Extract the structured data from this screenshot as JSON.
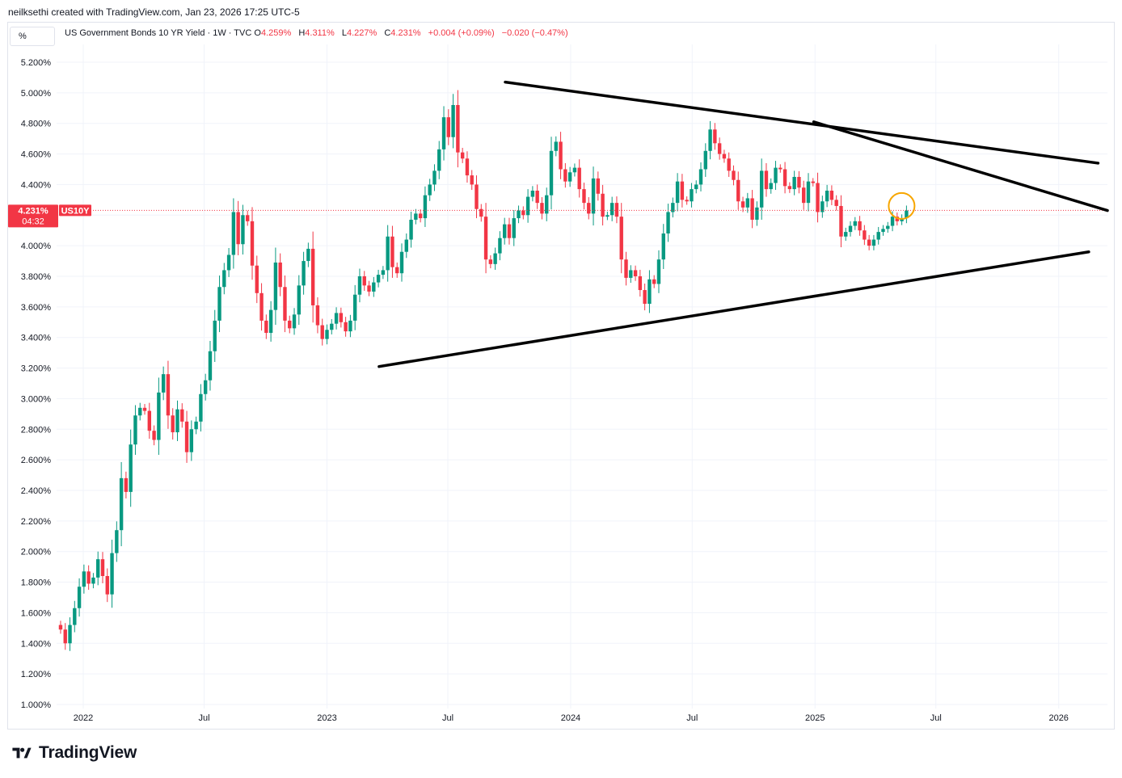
{
  "header": {
    "created_by": "neilksethi created with TradingView.com, Jan 23, 2026 17:25 UTC-5"
  },
  "scale_mode": "%",
  "legend": {
    "symbol_desc": "US Government Bonds 10 YR Yield · 1W · TVC",
    "open_label": "O",
    "open": "4.259%",
    "high_label": "H",
    "high": "4.311%",
    "low_label": "L",
    "low": "4.227%",
    "close_label": "C",
    "close": "4.231%",
    "change": "+0.004 (+0.09%)",
    "change2": "−0.020 (−0.47%)"
  },
  "price_tag": {
    "price": "4.231%",
    "ticker": "US10Y",
    "countdown": "04:32"
  },
  "brand": {
    "name": "TradingView"
  },
  "colors": {
    "up": "#089981",
    "down": "#f23645",
    "grid": "#f0f3fa",
    "trendline": "#000000",
    "highlight": "#f7a600"
  },
  "chart_data": {
    "type": "candlestick",
    "symbol": "US10Y",
    "interval": "1W",
    "ylim": [
      1.0,
      5.3
    ],
    "y_ticks": [
      "5.200%",
      "5.000%",
      "4.800%",
      "4.600%",
      "4.400%",
      "4.200%",
      "4.000%",
      "3.800%",
      "3.600%",
      "3.400%",
      "3.200%",
      "3.000%",
      "2.800%",
      "2.600%",
      "2.400%",
      "2.200%",
      "2.000%",
      "1.800%",
      "1.600%",
      "1.400%",
      "1.200%",
      "1.000%"
    ],
    "x_ticks": [
      {
        "label": "2022",
        "date": "2022-01-01"
      },
      {
        "label": "Jul",
        "date": "2022-07-01"
      },
      {
        "label": "2023",
        "date": "2023-01-01"
      },
      {
        "label": "Jul",
        "date": "2023-07-01"
      },
      {
        "label": "2024",
        "date": "2024-01-01"
      },
      {
        "label": "Jul",
        "date": "2024-07-01"
      },
      {
        "label": "2025",
        "date": "2025-01-01"
      },
      {
        "label": "Jul",
        "date": "2025-07-01"
      },
      {
        "label": "2026",
        "date": "2026-01-01"
      }
    ],
    "x_range": [
      "2021-11-22",
      "2026-03-15"
    ],
    "closes": [
      1.49,
      1.4,
      1.52,
      1.63,
      1.77,
      1.87,
      1.79,
      1.83,
      1.95,
      1.84,
      1.72,
      1.99,
      2.14,
      2.48,
      2.39,
      2.7,
      2.89,
      2.94,
      2.92,
      2.79,
      2.73,
      3.04,
      3.16,
      2.89,
      2.78,
      2.93,
      2.85,
      2.65,
      2.8,
      2.85,
      3.03,
      3.12,
      3.31,
      3.51,
      3.73,
      3.84,
      3.94,
      4.22,
      4.01,
      4.2,
      4.16,
      3.87,
      3.69,
      3.51,
      3.43,
      3.58,
      3.89,
      3.73,
      3.51,
      3.46,
      3.55,
      3.74,
      3.9,
      3.98,
      3.61,
      3.48,
      3.39,
      3.45,
      3.49,
      3.56,
      3.5,
      3.44,
      3.51,
      3.68,
      3.8,
      3.74,
      3.7,
      3.76,
      3.81,
      3.84,
      4.06,
      3.86,
      3.82,
      3.96,
      4.04,
      4.17,
      4.21,
      4.18,
      4.33,
      4.4,
      4.49,
      4.63,
      4.84,
      4.71,
      4.92,
      4.61,
      4.57,
      4.46,
      4.4,
      4.24,
      4.19,
      3.91,
      3.88,
      3.95,
      4.05,
      4.14,
      4.05,
      4.18,
      4.23,
      4.2,
      4.32,
      4.36,
      4.28,
      4.21,
      4.33,
      4.62,
      4.68,
      4.5,
      4.42,
      4.48,
      4.51,
      4.37,
      4.28,
      4.21,
      4.44,
      4.34,
      4.19,
      4.2,
      4.28,
      4.19,
      3.91,
      3.79,
      3.84,
      3.8,
      3.71,
      3.62,
      3.78,
      3.75,
      3.91,
      4.08,
      4.22,
      4.28,
      4.42,
      4.3,
      4.29,
      4.37,
      4.4,
      4.5,
      4.62,
      4.76,
      4.67,
      4.6,
      4.57,
      4.49,
      4.43,
      4.29,
      4.25,
      4.31,
      4.17,
      4.25,
      4.49,
      4.37,
      4.41,
      4.51,
      4.5,
      4.39,
      4.37,
      4.45,
      4.38,
      4.28,
      4.42,
      4.41,
      4.22,
      4.29,
      4.36,
      4.3,
      4.26,
      4.06,
      4.09,
      4.13,
      4.16,
      4.1,
      4.04,
      4.0,
      4.04,
      4.09,
      4.11,
      4.13,
      4.19,
      4.16,
      4.18,
      4.23
    ],
    "annotations": [
      "upper trendline",
      "descending trendline",
      "lower trendline",
      "highlighted last candle"
    ]
  }
}
